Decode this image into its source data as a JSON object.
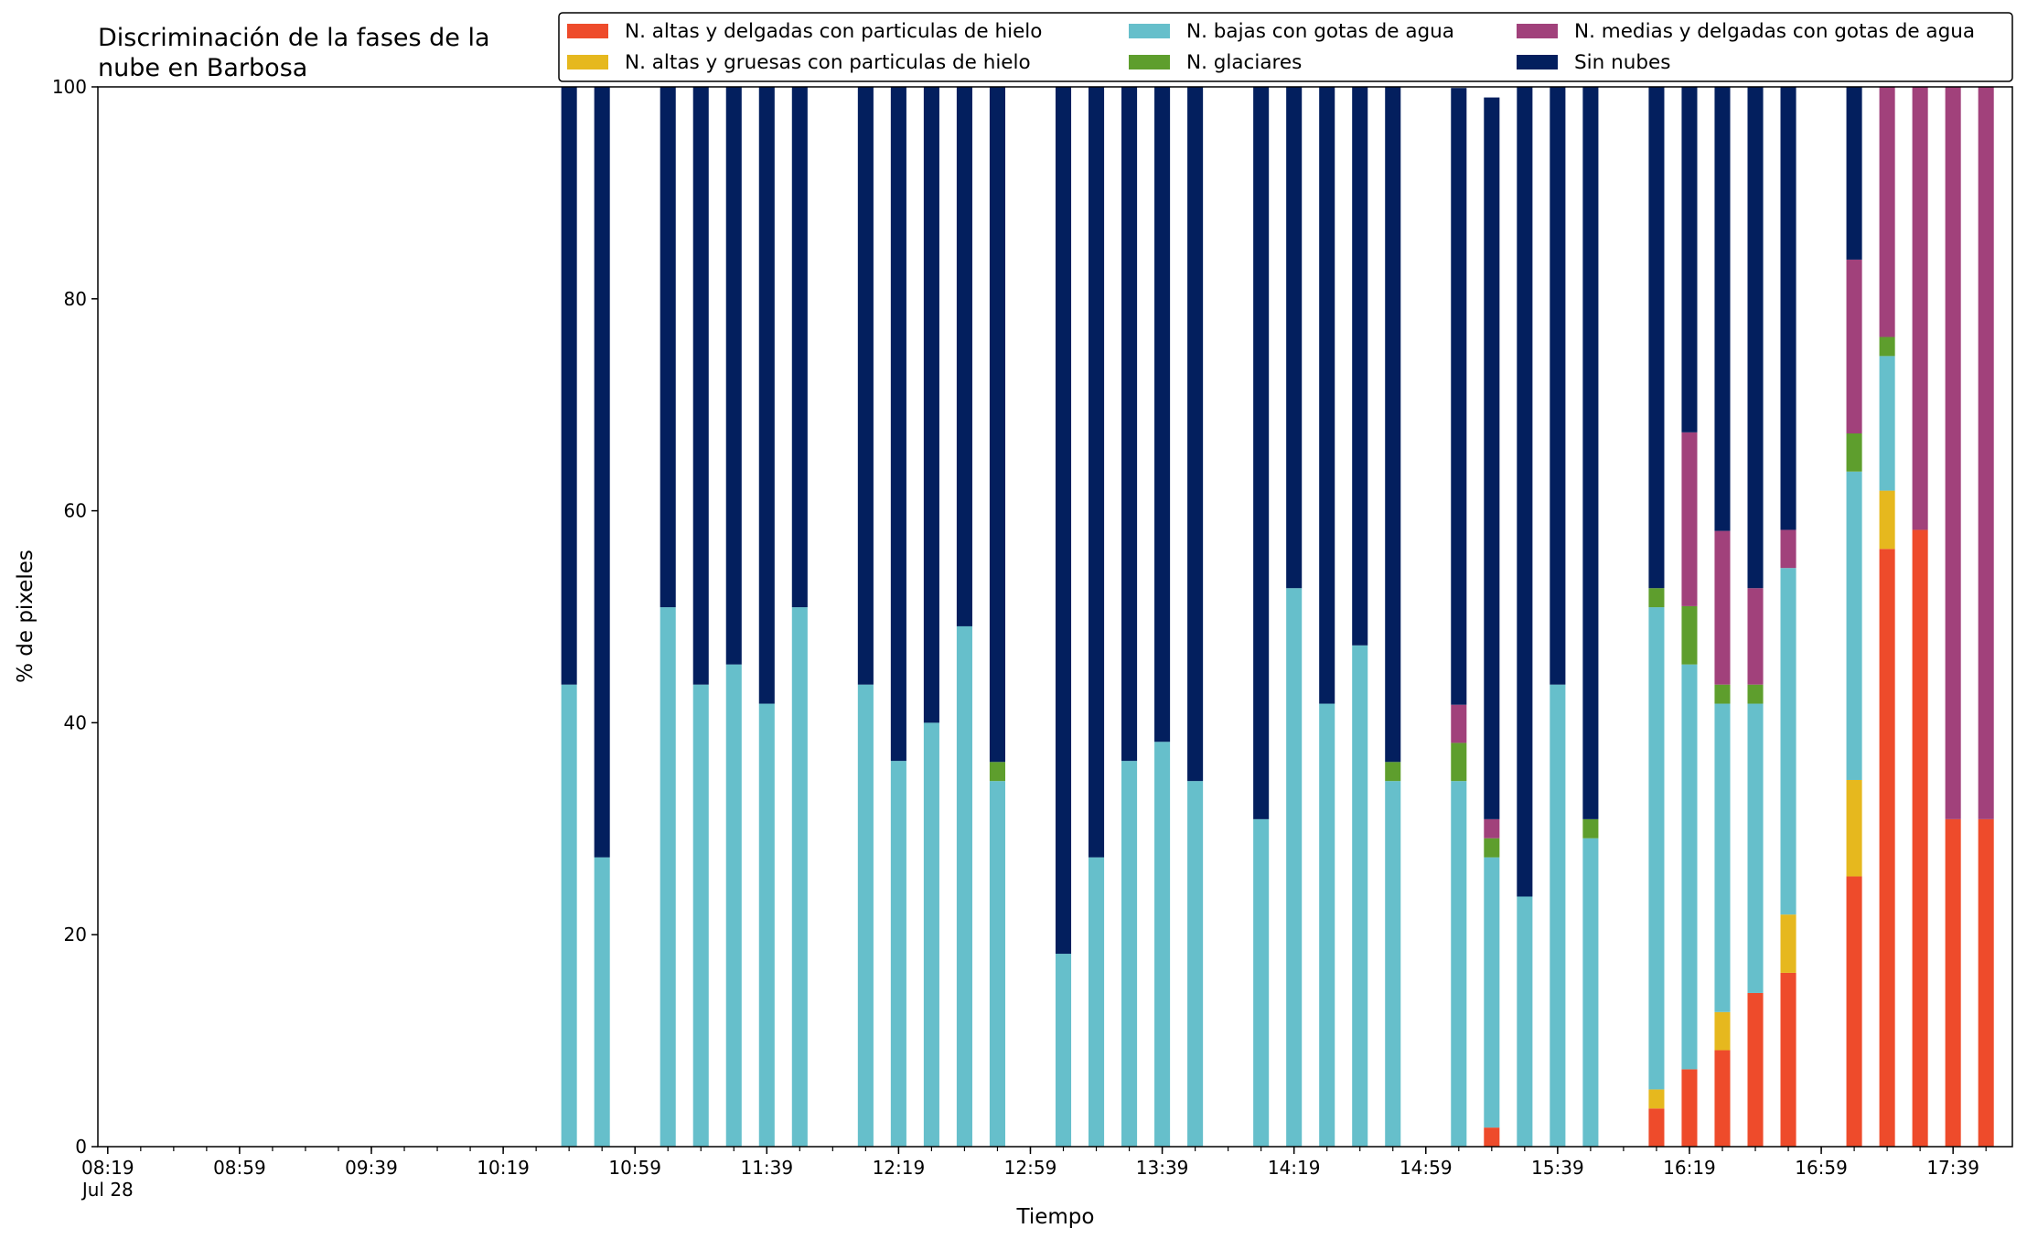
{
  "chart_data": {
    "type": "bar",
    "stacked": true,
    "title": [
      "Discriminación de la fases de la",
      "nube en Barbosa"
    ],
    "xlabel": "Tiempo",
    "ylabel": "% de pixeles",
    "ylim": [
      0,
      100
    ],
    "yticks": [
      "0",
      "20",
      "40",
      "60",
      "80",
      "100"
    ],
    "xlim": [
      "08:16",
      "17:57"
    ],
    "xtick_labels": [
      "08:19",
      "08:59",
      "09:39",
      "10:19",
      "10:59",
      "11:39",
      "12:19",
      "12:59",
      "13:39",
      "14:19",
      "14:59",
      "15:39",
      "16:19",
      "16:59",
      "17:39"
    ],
    "xtick_date": "Jul 28",
    "minor_tick_interval_minutes": 10,
    "grid": false,
    "legend_position": "top-right",
    "legend_columns": 3,
    "x": [
      "10:39",
      "10:49",
      "11:09",
      "11:19",
      "11:29",
      "11:39",
      "11:49",
      "12:09",
      "12:19",
      "12:29",
      "12:39",
      "12:49",
      "13:09",
      "13:19",
      "13:29",
      "13:39",
      "13:49",
      "14:09",
      "14:19",
      "14:29",
      "14:39",
      "14:49",
      "15:09",
      "15:19",
      "15:29",
      "15:39",
      "15:49",
      "16:09",
      "16:19",
      "16:29",
      "16:39",
      "16:49",
      "17:09",
      "17:19",
      "17:29",
      "17:39",
      "17:49"
    ],
    "series": [
      {
        "name": "N. altas y delgadas con particulas de hielo",
        "color": "#ee4b2b",
        "values": [
          0,
          0,
          0,
          0,
          0,
          0,
          0,
          0,
          0,
          0,
          0,
          0,
          0,
          0,
          0,
          0,
          0,
          0,
          0,
          0,
          0,
          0,
          0,
          1.8,
          0,
          0,
          0,
          3.6,
          7.3,
          9.1,
          14.5,
          16.4,
          25.5,
          56.4,
          58.2,
          30.9,
          30.9
        ]
      },
      {
        "name": "N. altas y gruesas con particulas de hielo",
        "color": "#e6b81e",
        "values": [
          0,
          0,
          0,
          0,
          0,
          0,
          0,
          0,
          0,
          0,
          0,
          0,
          0,
          0,
          0,
          0,
          0,
          0,
          0,
          0,
          0,
          0,
          0,
          0,
          0,
          0,
          0,
          1.8,
          0,
          3.6,
          0,
          5.5,
          9.1,
          5.5,
          0,
          0,
          0
        ]
      },
      {
        "name": "N. bajas con gotas de agua",
        "color": "#66bfcb",
        "values": [
          43.6,
          27.3,
          50.9,
          43.6,
          45.5,
          41.8,
          50.9,
          43.6,
          36.4,
          40.0,
          49.1,
          34.5,
          18.2,
          27.3,
          36.4,
          38.2,
          34.5,
          30.9,
          52.7,
          41.8,
          47.3,
          34.5,
          34.5,
          25.5,
          23.6,
          43.6,
          29.1,
          45.5,
          38.2,
          29.1,
          27.3,
          32.7,
          29.1,
          12.7,
          0,
          0,
          0
        ]
      },
      {
        "name": "N. glaciares",
        "color": "#5e9e2d",
        "values": [
          0,
          0,
          0,
          0,
          0,
          0,
          0,
          0,
          0,
          0,
          0,
          1.8,
          0,
          0,
          0,
          0,
          0,
          0,
          0,
          0,
          0,
          1.8,
          3.6,
          1.8,
          0,
          0,
          1.8,
          1.8,
          5.5,
          1.8,
          1.8,
          0,
          3.6,
          1.8,
          0,
          0,
          0
        ]
      },
      {
        "name": "N. medias y delgadas con gotas de agua",
        "color": "#a1417b",
        "values": [
          0,
          0,
          0,
          0,
          0,
          0,
          0,
          0,
          0,
          0,
          0,
          0,
          0,
          0,
          0,
          0,
          0,
          0,
          0,
          0,
          0,
          0,
          3.6,
          1.8,
          0,
          0,
          0,
          0,
          16.4,
          14.5,
          9.1,
          3.6,
          16.4,
          23.6,
          41.8,
          69.1,
          69.1
        ]
      },
      {
        "name": "Sin nubes",
        "color": "#031f5e",
        "values": [
          56.4,
          72.7,
          49.1,
          56.4,
          54.5,
          58.2,
          49.1,
          56.4,
          63.6,
          60.0,
          50.9,
          63.7,
          81.8,
          72.7,
          63.6,
          61.8,
          65.5,
          69.1,
          47.3,
          58.2,
          52.7,
          63.7,
          58.2,
          68.1,
          76.4,
          56.4,
          69.1,
          47.3,
          32.6,
          41.9,
          47.3,
          41.8,
          16.3,
          0,
          0,
          0,
          0
        ]
      }
    ]
  }
}
